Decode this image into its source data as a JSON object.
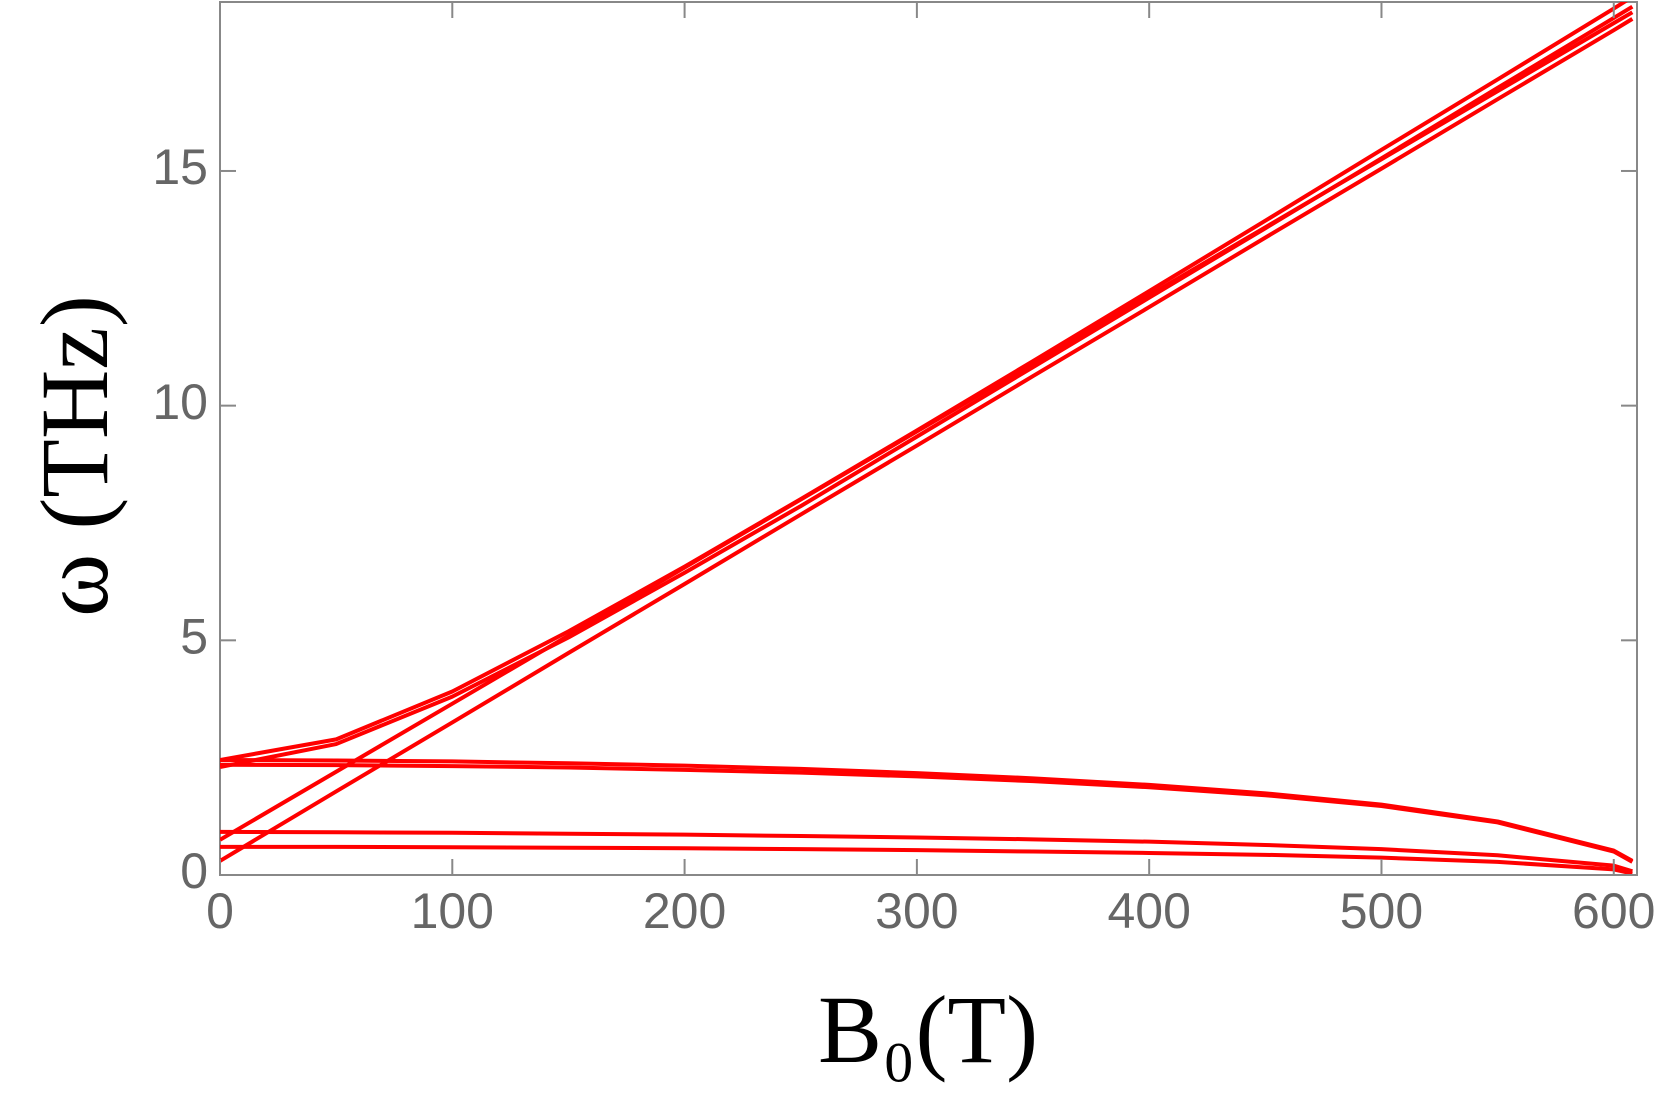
{
  "chart_data": {
    "type": "line",
    "x_label": "B₀(T)",
    "y_label": "ω (THz)",
    "x": [
      0,
      50,
      100,
      150,
      200,
      250,
      300,
      350,
      400,
      450,
      500,
      550,
      600,
      608
    ],
    "series": [
      {
        "color": "#ff0000",
        "values": [
          2.45,
          2.89,
          3.91,
          5.19,
          6.57,
          8.01,
          9.47,
          10.95,
          12.44,
          13.94,
          15.45,
          16.95,
          18.46,
          18.71
        ]
      },
      {
        "color": "#ff0000",
        "values": [
          2.3,
          2.79,
          3.8,
          5.06,
          6.44,
          7.86,
          9.34,
          10.82,
          12.3,
          13.78,
          15.27,
          16.77,
          18.26,
          18.5
        ]
      },
      {
        "color": "#ff0000",
        "values": [
          0.3,
          1.78,
          3.25,
          4.73,
          6.2,
          7.68,
          9.15,
          10.63,
          12.1,
          13.58,
          15.05,
          16.53,
          18.0,
          18.24
        ]
      },
      {
        "color": "#ff0000",
        "values": [
          0.75,
          2.2,
          3.65,
          5.1,
          6.55,
          8.0,
          9.45,
          10.9,
          12.35,
          13.8,
          15.25,
          16.7,
          18.15,
          18.38
        ]
      },
      {
        "color": "#ff0000",
        "values": [
          2.45,
          2.44,
          2.42,
          2.38,
          2.33,
          2.26,
          2.17,
          2.06,
          1.92,
          1.74,
          1.5,
          1.14,
          0.52,
          0.3
        ]
      },
      {
        "color": "#ff0000",
        "values": [
          2.35,
          2.34,
          2.32,
          2.29,
          2.24,
          2.18,
          2.1,
          2.0,
          1.87,
          1.7,
          1.47,
          1.12,
          0.5,
          0.28
        ]
      },
      {
        "color": "#ff0000",
        "values": [
          0.92,
          0.91,
          0.9,
          0.88,
          0.86,
          0.83,
          0.8,
          0.76,
          0.71,
          0.64,
          0.55,
          0.42,
          0.2,
          0.08
        ]
      },
      {
        "color": "#ff0000",
        "values": [
          0.6,
          0.6,
          0.59,
          0.58,
          0.57,
          0.55,
          0.53,
          0.5,
          0.47,
          0.43,
          0.37,
          0.28,
          0.12,
          0.03
        ]
      }
    ],
    "xlim": [
      0,
      610
    ],
    "xticks": [
      0,
      100,
      200,
      300,
      400,
      500,
      600
    ],
    "ylim": [
      0,
      18.6
    ],
    "yticks": [
      0,
      5,
      10,
      15
    ],
    "grid": false
  }
}
